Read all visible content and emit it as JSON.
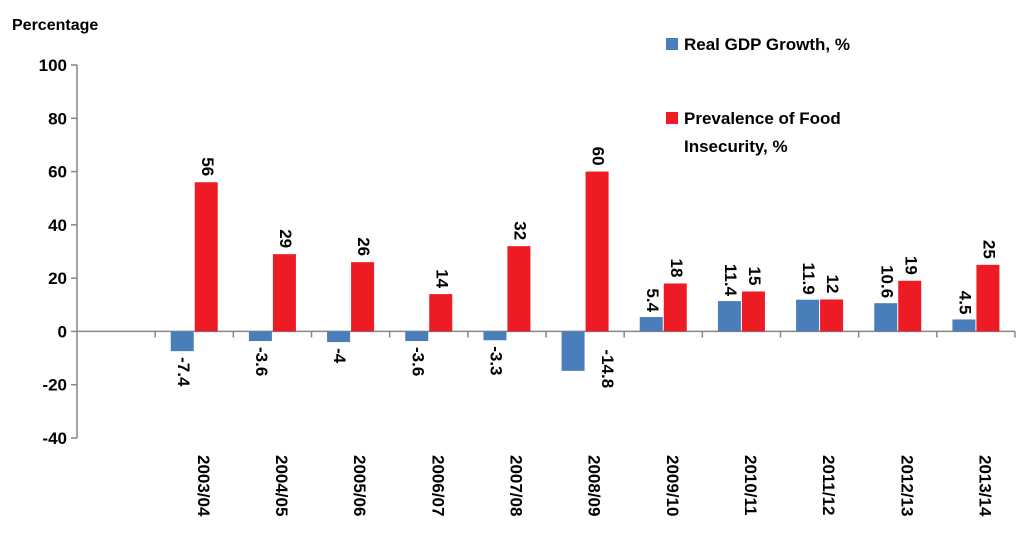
{
  "chart_data": {
    "type": "bar",
    "ylabel": "Percentage",
    "ylim": [
      -40,
      100
    ],
    "yticks": [
      "-40",
      "-20",
      "0",
      "20",
      "40",
      "60",
      "80",
      "100"
    ],
    "categories": [
      "",
      "2003/04",
      "2004/05",
      "2005/06",
      "2006/07",
      "2007/08",
      "2008/09",
      "2009/10",
      "2010/11",
      "2011/12",
      "2012/13",
      "2013/14"
    ],
    "series": [
      {
        "name": "Real GDP Growth, %",
        "color": "#4a7ebb",
        "values": [
          null,
          -7.4,
          -3.6,
          -4,
          -3.6,
          -3.3,
          -14.8,
          5.4,
          11.4,
          11.9,
          10.6,
          4.5
        ]
      },
      {
        "name": "Prevalence of Food Insecurity, %",
        "color": "#ed1c24",
        "values": [
          null,
          56,
          29,
          26,
          14,
          32,
          60,
          18,
          15,
          12,
          19,
          25
        ]
      }
    ],
    "legend": {
      "position": "top-right",
      "lines": [
        [
          "Real GDP Growth, %"
        ],
        [
          "Prevalence of Food",
          "Insecurity, %"
        ]
      ]
    },
    "grid": false
  }
}
